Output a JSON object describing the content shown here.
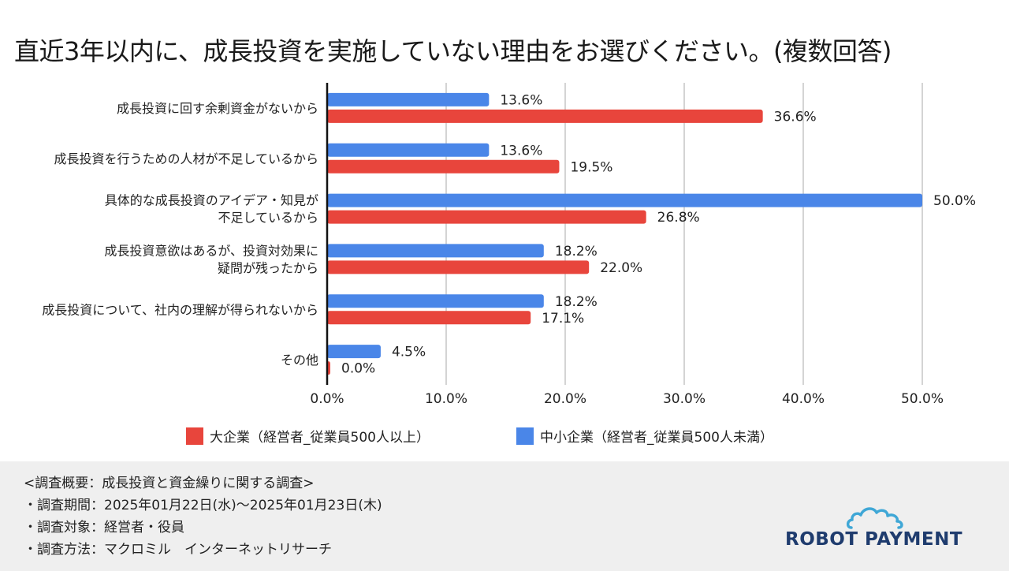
{
  "title": "直近3年以内に、成長投資を実施していない理由をお選びください。(複数回答)",
  "chart_data": {
    "type": "bar",
    "orientation": "horizontal",
    "categories": [
      [
        "成長投資に回す余剰資金がないから"
      ],
      [
        "成長投資を行うための人材が不足しているから"
      ],
      [
        "具体的な成長投資のアイデア・知見が",
        "不足しているから"
      ],
      [
        "成長投資意欲はあるが、投資対効果に",
        "疑問が残ったから"
      ],
      [
        "成長投資について、社内の理解が得られないから"
      ],
      [
        "その他"
      ]
    ],
    "series": [
      {
        "name": "中小企業（経営者_従業員500人未満）",
        "color": "#4a86e8",
        "values": [
          13.6,
          13.6,
          50.0,
          18.2,
          18.2,
          4.5
        ],
        "labels": [
          "13.6%",
          "13.6%",
          "50.0%",
          "18.2%",
          "18.2%",
          "4.5%"
        ]
      },
      {
        "name": "大企業（経営者_従業員500人以上）",
        "color": "#e8453c",
        "values": [
          36.6,
          19.5,
          26.8,
          22.0,
          17.1,
          0.0
        ],
        "labels": [
          "36.6%",
          "19.5%",
          "26.8%",
          "22.0%",
          "17.1%",
          "0.0%"
        ]
      }
    ],
    "xlim": [
      0,
      50
    ],
    "x_ticks": [
      "0.0%",
      "10.0%",
      "20.0%",
      "30.0%",
      "40.0%",
      "50.0%"
    ],
    "grid": true,
    "legend_position": "bottom",
    "legend_order": [
      "大企業（経営者_従業員500人以上）",
      "中小企業（経営者_従業員500人未満）"
    ]
  },
  "legend": {
    "large": "大企業（経営者_従業員500人以上）",
    "small": "中小企業（経営者_従業員500人未満）",
    "large_color": "#e8453c",
    "small_color": "#4a86e8"
  },
  "footer": {
    "lines": [
      "<調査概要：成長投資と資金繰りに関する調査>",
      "・調査期間：2025年01月22日(水)〜2025年01月23日(木)",
      "・調査対象：経営者・役員",
      "・調査方法：マクロミル　インターネットリサーチ"
    ],
    "background": "#efefef"
  },
  "logo": {
    "text": "ROBOT PAYMENT",
    "color": "#1f3c6e",
    "icon": "cloud-icon"
  }
}
